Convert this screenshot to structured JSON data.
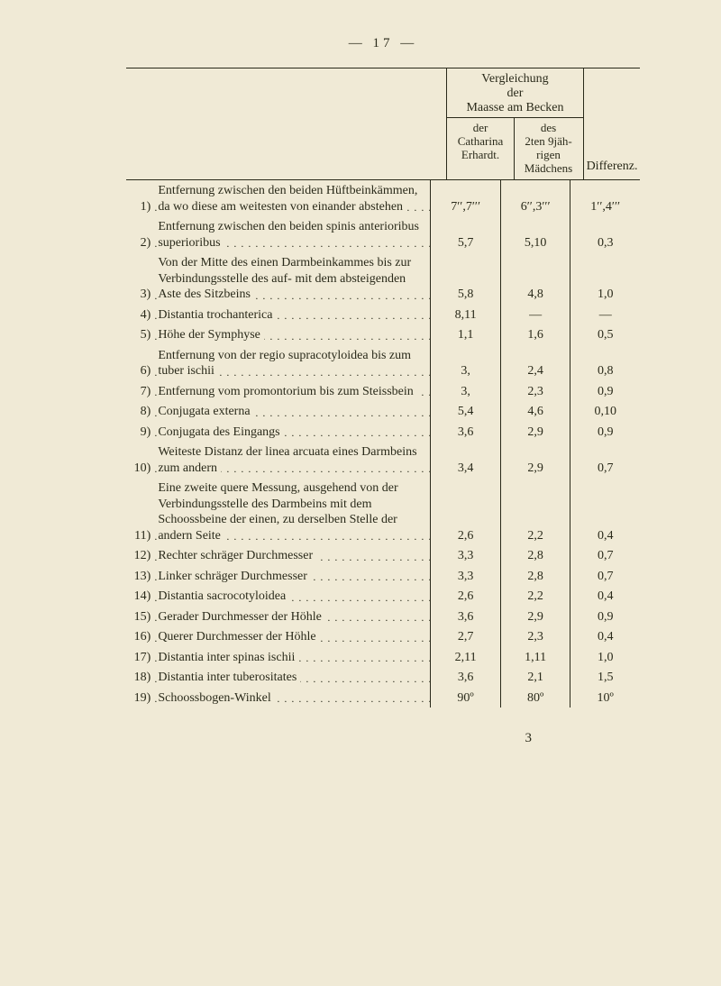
{
  "pagenum": "— 17 —",
  "header": {
    "verg_line1": "Vergleichung",
    "verg_line2": "der",
    "verg_line3": "Maasse am Becken",
    "diff": "Differenz.",
    "sub_a_1": "der",
    "sub_a_2": "Catharina",
    "sub_a_3": "Erhardt.",
    "sub_b_1": "des",
    "sub_b_2": "2ten 9jäh-",
    "sub_b_3": "rigen",
    "sub_b_4": "Mädchens"
  },
  "rows": [
    {
      "n": "1)",
      "label": "Entfernung zwischen den beiden Hüftbeinkämmen, da wo diese am weitesten von einander abstehen",
      "a": "7′′,7′′′",
      "b": "6′′,3′′′",
      "c": "1′′,4′′′"
    },
    {
      "n": "2)",
      "label": "Entfernung zwischen den beiden spinis anterioribus superioribus",
      "a": "5,7",
      "b": "5,10",
      "c": "0,3"
    },
    {
      "n": "3)",
      "label": "Von der Mitte des einen Darmbeinkammes bis zur Verbindungsstelle des auf- mit dem absteigenden Aste des Sitzbeins",
      "a": "5,8",
      "b": "4,8",
      "c": "1,0"
    },
    {
      "n": "4)",
      "label": "Distantia trochanterica",
      "a": "8,11",
      "b": "—",
      "c": "—"
    },
    {
      "n": "5)",
      "label": "Höhe der Symphyse",
      "a": "1,1",
      "b": "1,6",
      "c": "0,5"
    },
    {
      "n": "6)",
      "label": "Entfernung von der regio supracotyloidea bis zum tuber ischii",
      "a": "3,",
      "b": "2,4",
      "c": "0,8"
    },
    {
      "n": "7)",
      "label": "Entfernung vom promontorium bis zum Steissbein",
      "a": "3,",
      "b": "2,3",
      "c": "0,9"
    },
    {
      "n": "8)",
      "label": "Conjugata externa",
      "a": "5,4",
      "b": "4,6",
      "c": "0,10"
    },
    {
      "n": "9)",
      "label": "Conjugata des Eingangs",
      "a": "3,6",
      "b": "2,9",
      "c": "0,9"
    },
    {
      "n": "10)",
      "label": "Weiteste Distanz der linea arcuata eines Darmbeins zum andern",
      "a": "3,4",
      "b": "2,9",
      "c": "0,7"
    },
    {
      "n": "11)",
      "label": "Eine zweite quere Messung, ausgehend von der Verbindungsstelle des Darmbeins mit dem Schoossbeine der einen, zu derselben Stelle der andern Seite",
      "a": "2,6",
      "b": "2,2",
      "c": "0,4"
    },
    {
      "n": "12)",
      "label": "Rechter schräger Durchmesser",
      "a": "3,3",
      "b": "2,8",
      "c": "0,7"
    },
    {
      "n": "13)",
      "label": "Linker schräger Durchmesser",
      "a": "3,3",
      "b": "2,8",
      "c": "0,7"
    },
    {
      "n": "14)",
      "label": "Distantia sacrocotyloidea",
      "a": "2,6",
      "b": "2,2",
      "c": "0,4"
    },
    {
      "n": "15)",
      "label": "Gerader Durchmesser der Höhle",
      "a": "3,6",
      "b": "2,9",
      "c": "0,9"
    },
    {
      "n": "16)",
      "label": "Querer Durchmesser der Höhle",
      "a": "2,7",
      "b": "2,3",
      "c": "0,4"
    },
    {
      "n": "17)",
      "label": "Distantia inter spinas ischii",
      "a": "2,11",
      "b": "1,11",
      "c": "1,0"
    },
    {
      "n": "18)",
      "label": "Distantia inter tuberositates",
      "a": "3,6",
      "b": "2,1",
      "c": "1,5"
    },
    {
      "n": "19)",
      "label": "Schoossbogen-Winkel",
      "a": "90º",
      "b": "80º",
      "c": "10º"
    }
  ],
  "footnum": "3"
}
